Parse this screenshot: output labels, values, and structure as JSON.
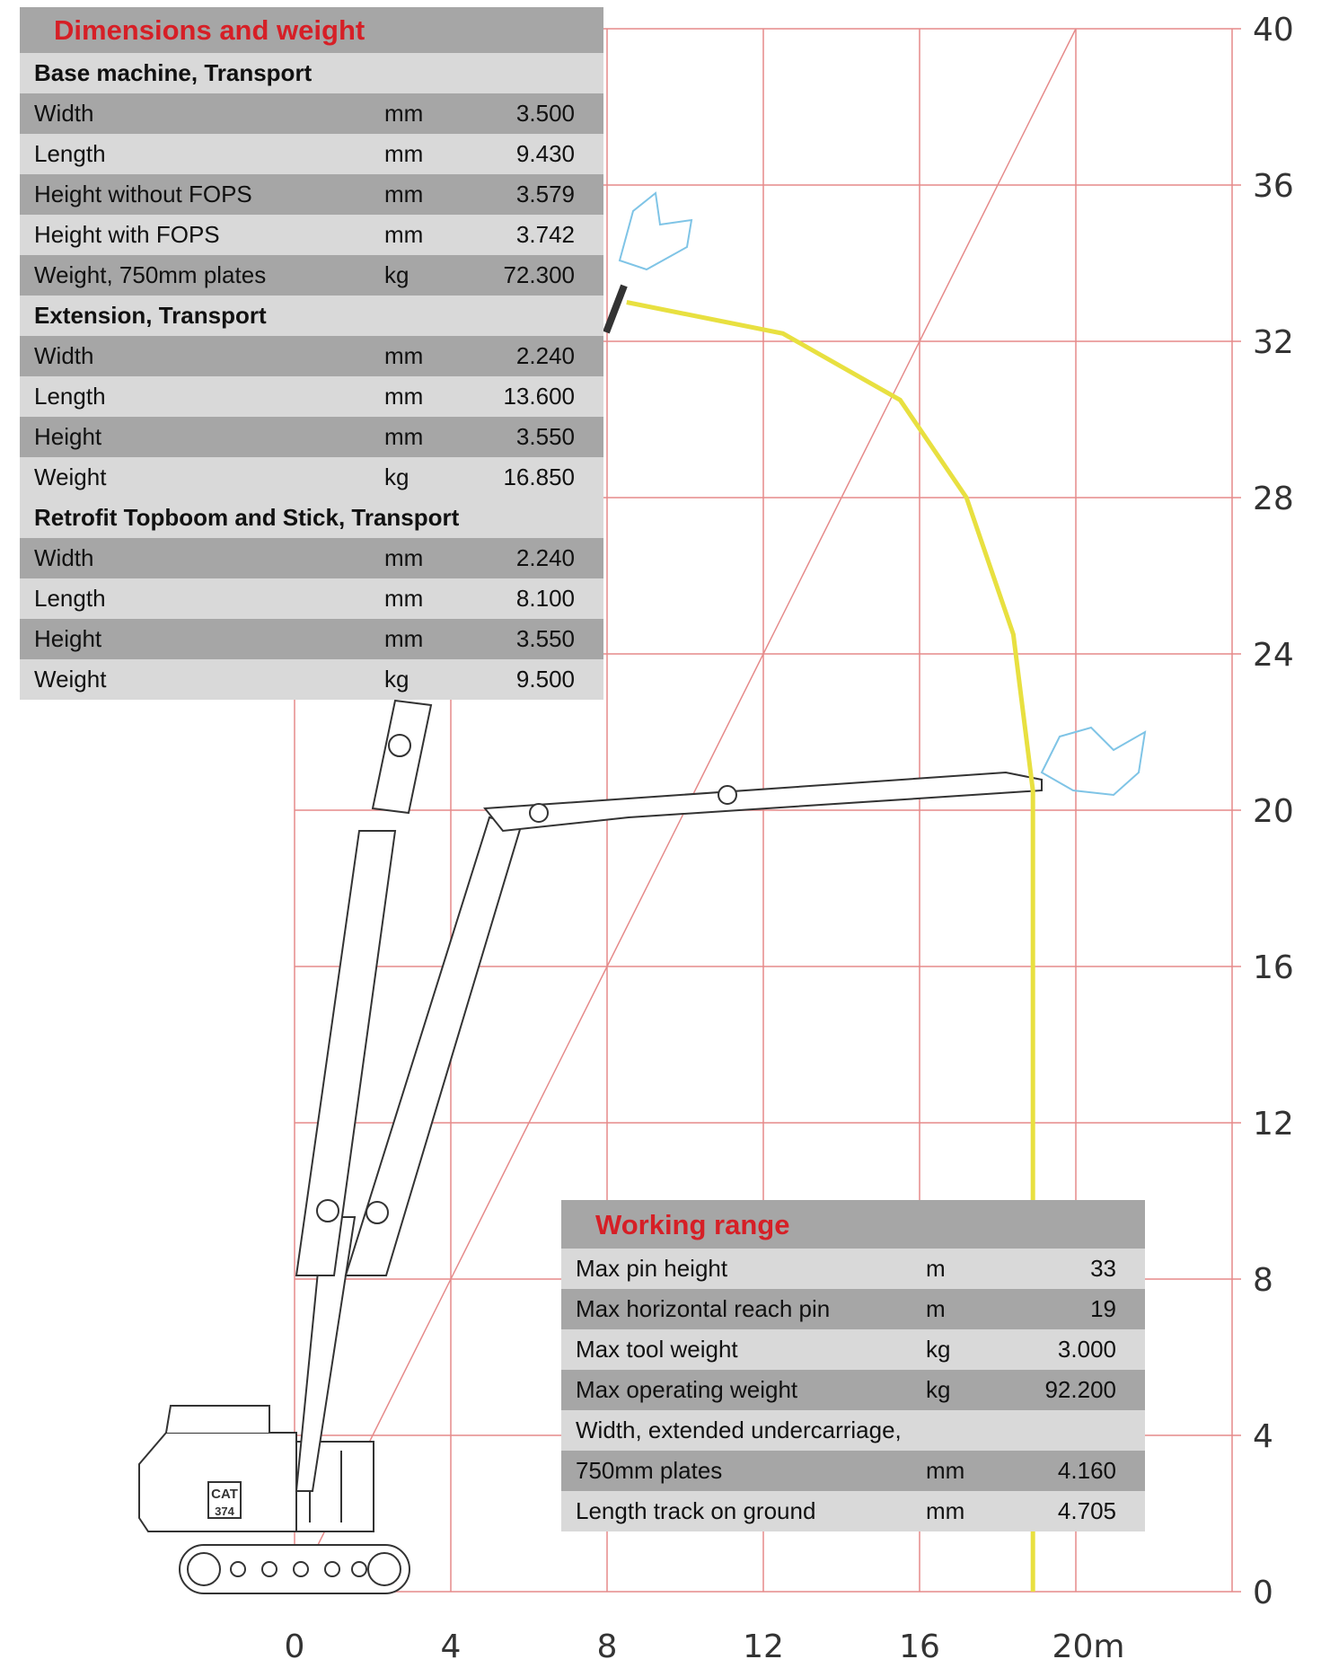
{
  "chart_data": {
    "type": "line",
    "title": "",
    "xlabel": "",
    "ylabel": "",
    "x_ticks": [
      "0",
      "4",
      "8",
      "12",
      "16",
      "20m"
    ],
    "y_ticks": [
      "0",
      "4",
      "8",
      "12",
      "16",
      "20",
      "24",
      "28",
      "32",
      "36",
      "40"
    ],
    "xlim": [
      0,
      24
    ],
    "ylim": [
      0,
      40
    ],
    "grid": true,
    "series": [
      {
        "values": [
          [
            18.9,
            0
          ],
          [
            18.9,
            20.5
          ],
          [
            18.4,
            24.5
          ],
          [
            17.2,
            28
          ],
          [
            15.5,
            30.5
          ],
          [
            12.5,
            32.2
          ],
          [
            8.5,
            33
          ]
        ]
      }
    ],
    "colors": {
      "grid": "#e58a8a",
      "reach_curve": "#e8e040",
      "axis_text": "#333333",
      "title_red": "#d61f26"
    }
  },
  "dimensions_table": {
    "title": "Dimensions and weight",
    "sections": [
      {
        "heading": "Base machine, Transport",
        "rows": [
          {
            "label": "Width",
            "unit": "mm",
            "value": "3.500"
          },
          {
            "label": "Length",
            "unit": "mm",
            "value": "9.430"
          },
          {
            "label": "Height without FOPS",
            "unit": "mm",
            "value": "3.579"
          },
          {
            "label": "Height with FOPS",
            "unit": "mm",
            "value": "3.742"
          },
          {
            "label": "Weight, 750mm plates",
            "unit": "kg",
            "value": "72.300"
          }
        ]
      },
      {
        "heading": "Extension, Transport",
        "rows": [
          {
            "label": "Width",
            "unit": "mm",
            "value": "2.240"
          },
          {
            "label": "Length",
            "unit": "mm",
            "value": "13.600"
          },
          {
            "label": "Height",
            "unit": "mm",
            "value": "3.550"
          },
          {
            "label": "Weight",
            "unit": "kg",
            "value": "16.850"
          }
        ]
      },
      {
        "heading": "Retrofit Topboom and Stick, Transport",
        "rows": [
          {
            "label": "Width",
            "unit": "mm",
            "value": "2.240"
          },
          {
            "label": "Length",
            "unit": "mm",
            "value": "8.100"
          },
          {
            "label": "Height",
            "unit": "mm",
            "value": "3.550"
          },
          {
            "label": "Weight",
            "unit": "kg",
            "value": "9.500"
          }
        ]
      }
    ]
  },
  "working_range_table": {
    "title": "Working range",
    "rows": [
      {
        "label": "Max pin height",
        "unit": "m",
        "value": "33"
      },
      {
        "label": "Max horizontal reach pin",
        "unit": "m",
        "value": "19"
      },
      {
        "label": "Max tool weight",
        "unit": "kg",
        "value": "3.000"
      },
      {
        "label": "Max operating weight",
        "unit": "kg",
        "value": "92.200"
      },
      {
        "label": "Width, extended undercarriage,",
        "unit": "",
        "value": ""
      },
      {
        "label": "750mm plates",
        "unit": "mm",
        "value": "4.160"
      },
      {
        "label": "Length track on ground",
        "unit": "mm",
        "value": "4.705"
      }
    ]
  },
  "machine": {
    "brand": "CAT",
    "model": "374"
  }
}
